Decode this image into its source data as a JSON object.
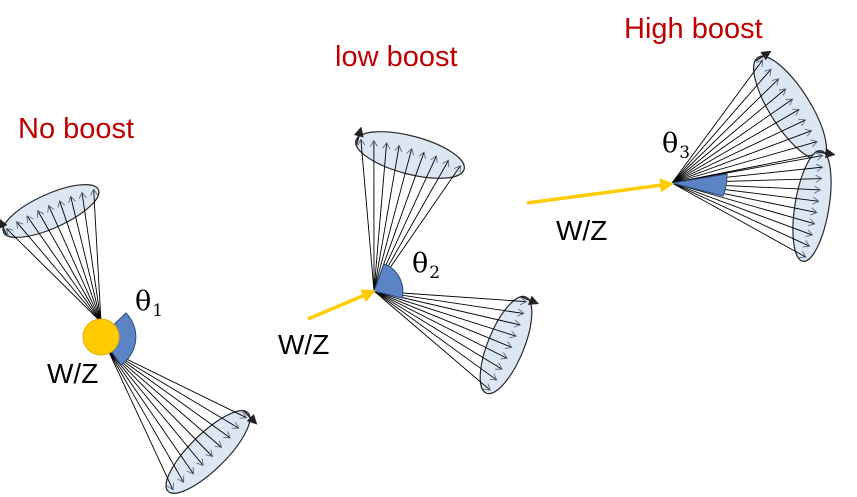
{
  "labels": {
    "no_boost": "No boost",
    "low_boost": "low boost",
    "high_boost": "High boost",
    "wz_left": "W/Z",
    "wz_middle": "W/Z",
    "wz_right": "W/Z",
    "theta_symbol": "θ",
    "theta1_index": "1",
    "theta2_index": "2",
    "theta3_index": "3"
  },
  "colors": {
    "title_red": "#c00000",
    "arrow_yellow": "#ffcc00",
    "wedge_blue": "#5b84c4",
    "cone_fill": "#dde7f3"
  }
}
